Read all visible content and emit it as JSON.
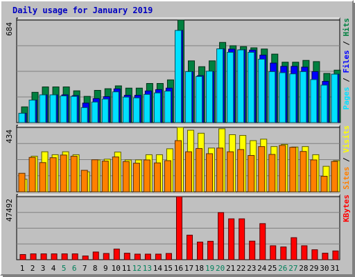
{
  "chart_data": {
    "type": "bar",
    "title": "Daily usage for January 2019",
    "categories": [
      "1",
      "2",
      "3",
      "4",
      "5",
      "6",
      "7",
      "8",
      "9",
      "10",
      "11",
      "12",
      "13",
      "14",
      "15",
      "16",
      "17",
      "18",
      "19",
      "20",
      "21",
      "22",
      "23",
      "24",
      "25",
      "26",
      "27",
      "28",
      "29",
      "30",
      "31"
    ],
    "weekend_days": [
      "5",
      "6",
      "12",
      "13",
      "19",
      "20",
      "26",
      "27"
    ],
    "panels": [
      {
        "name": "hits-files-pages",
        "ymax_label": "684",
        "ylim": [
          0,
          684
        ],
        "right_label": [
          {
            "text": "Pages",
            "color": "#00e0ff"
          },
          {
            "text": " / ",
            "color": "#000000"
          },
          {
            "text": "Files",
            "color": "#0000ff"
          },
          {
            "text": " / ",
            "color": "#000000"
          },
          {
            "text": "Hits",
            "color": "#008040"
          }
        ],
        "series": [
          {
            "name": "Hits",
            "color": "#008040",
            "values": [
              105,
              202,
              238,
              238,
              238,
              212,
              175,
              215,
              226,
              245,
              230,
              230,
              261,
              261,
              285,
              684,
              412,
              373,
              412,
              535,
              513,
              507,
              499,
              491,
              457,
              403,
              403,
              415,
              407,
              328,
              350
            ]
          },
          {
            "name": "Files",
            "color": "#0000ff",
            "values": [
              62,
              150,
              185,
              185,
              185,
              180,
              130,
              160,
              173,
              225,
              182,
              182,
              211,
              220,
              230,
              615,
              340,
              313,
              340,
              492,
              490,
              486,
              484,
              450,
              397,
              375,
              375,
              370,
              340,
              275,
              323
            ]
          },
          {
            "name": "Pages",
            "color": "#00e0ff",
            "values": [
              62,
              150,
              185,
              185,
              178,
              175,
              100,
              137,
              157,
              205,
              170,
              165,
              188,
              198,
              210,
              615,
              340,
              308,
              343,
              492,
              469,
              485,
              469,
              423,
              340,
              333,
              325,
              340,
              287,
              250,
              323
            ]
          }
        ]
      },
      {
        "name": "visits-sites",
        "ymax_label": "434",
        "ylim": [
          0,
          434
        ],
        "right_label": [
          {
            "text": "Sites",
            "color": "#ff8000"
          },
          {
            "text": " / ",
            "color": "#000000"
          },
          {
            "text": "Visits",
            "color": "#ffff00"
          }
        ],
        "series": [
          {
            "name": "Visits",
            "color": "#ffff00",
            "values": [
              85,
              240,
              270,
              250,
              270,
              250,
              135,
              215,
              220,
              268,
              215,
              215,
              250,
              250,
              290,
              434,
              415,
              395,
              295,
              425,
              385,
              380,
              345,
              355,
              305,
              320,
              302,
              305,
              250,
              172,
              210
            ]
          },
          {
            "name": "Sites",
            "color": "#ff8000",
            "values": [
              125,
              232,
              197,
              230,
              248,
              240,
              145,
              216,
              207,
              235,
              204,
              193,
              215,
              195,
              210,
              345,
              270,
              292,
              257,
              295,
              270,
              285,
              245,
              305,
              252,
              313,
              300,
              272,
              215,
              105,
              205
            ]
          }
        ]
      },
      {
        "name": "kbytes",
        "ymax_label": "47492",
        "ylim": [
          0,
          47492
        ],
        "right_label": [
          {
            "text": "KBytes",
            "color": "#ff0000"
          }
        ],
        "series": [
          {
            "name": "KBytes",
            "color": "#ff0000",
            "values": [
              3900,
              4400,
              4400,
              4400,
              4400,
              4400,
              2800,
              5800,
              4700,
              8000,
              4900,
              4200,
              4200,
              4200,
              4700,
              47492,
              18500,
              13300,
              13900,
              35500,
              30800,
              30800,
              14000,
              27200,
              10500,
              9600,
              16600,
              10500,
              7500,
              4900,
              6600
            ]
          }
        ]
      }
    ]
  }
}
